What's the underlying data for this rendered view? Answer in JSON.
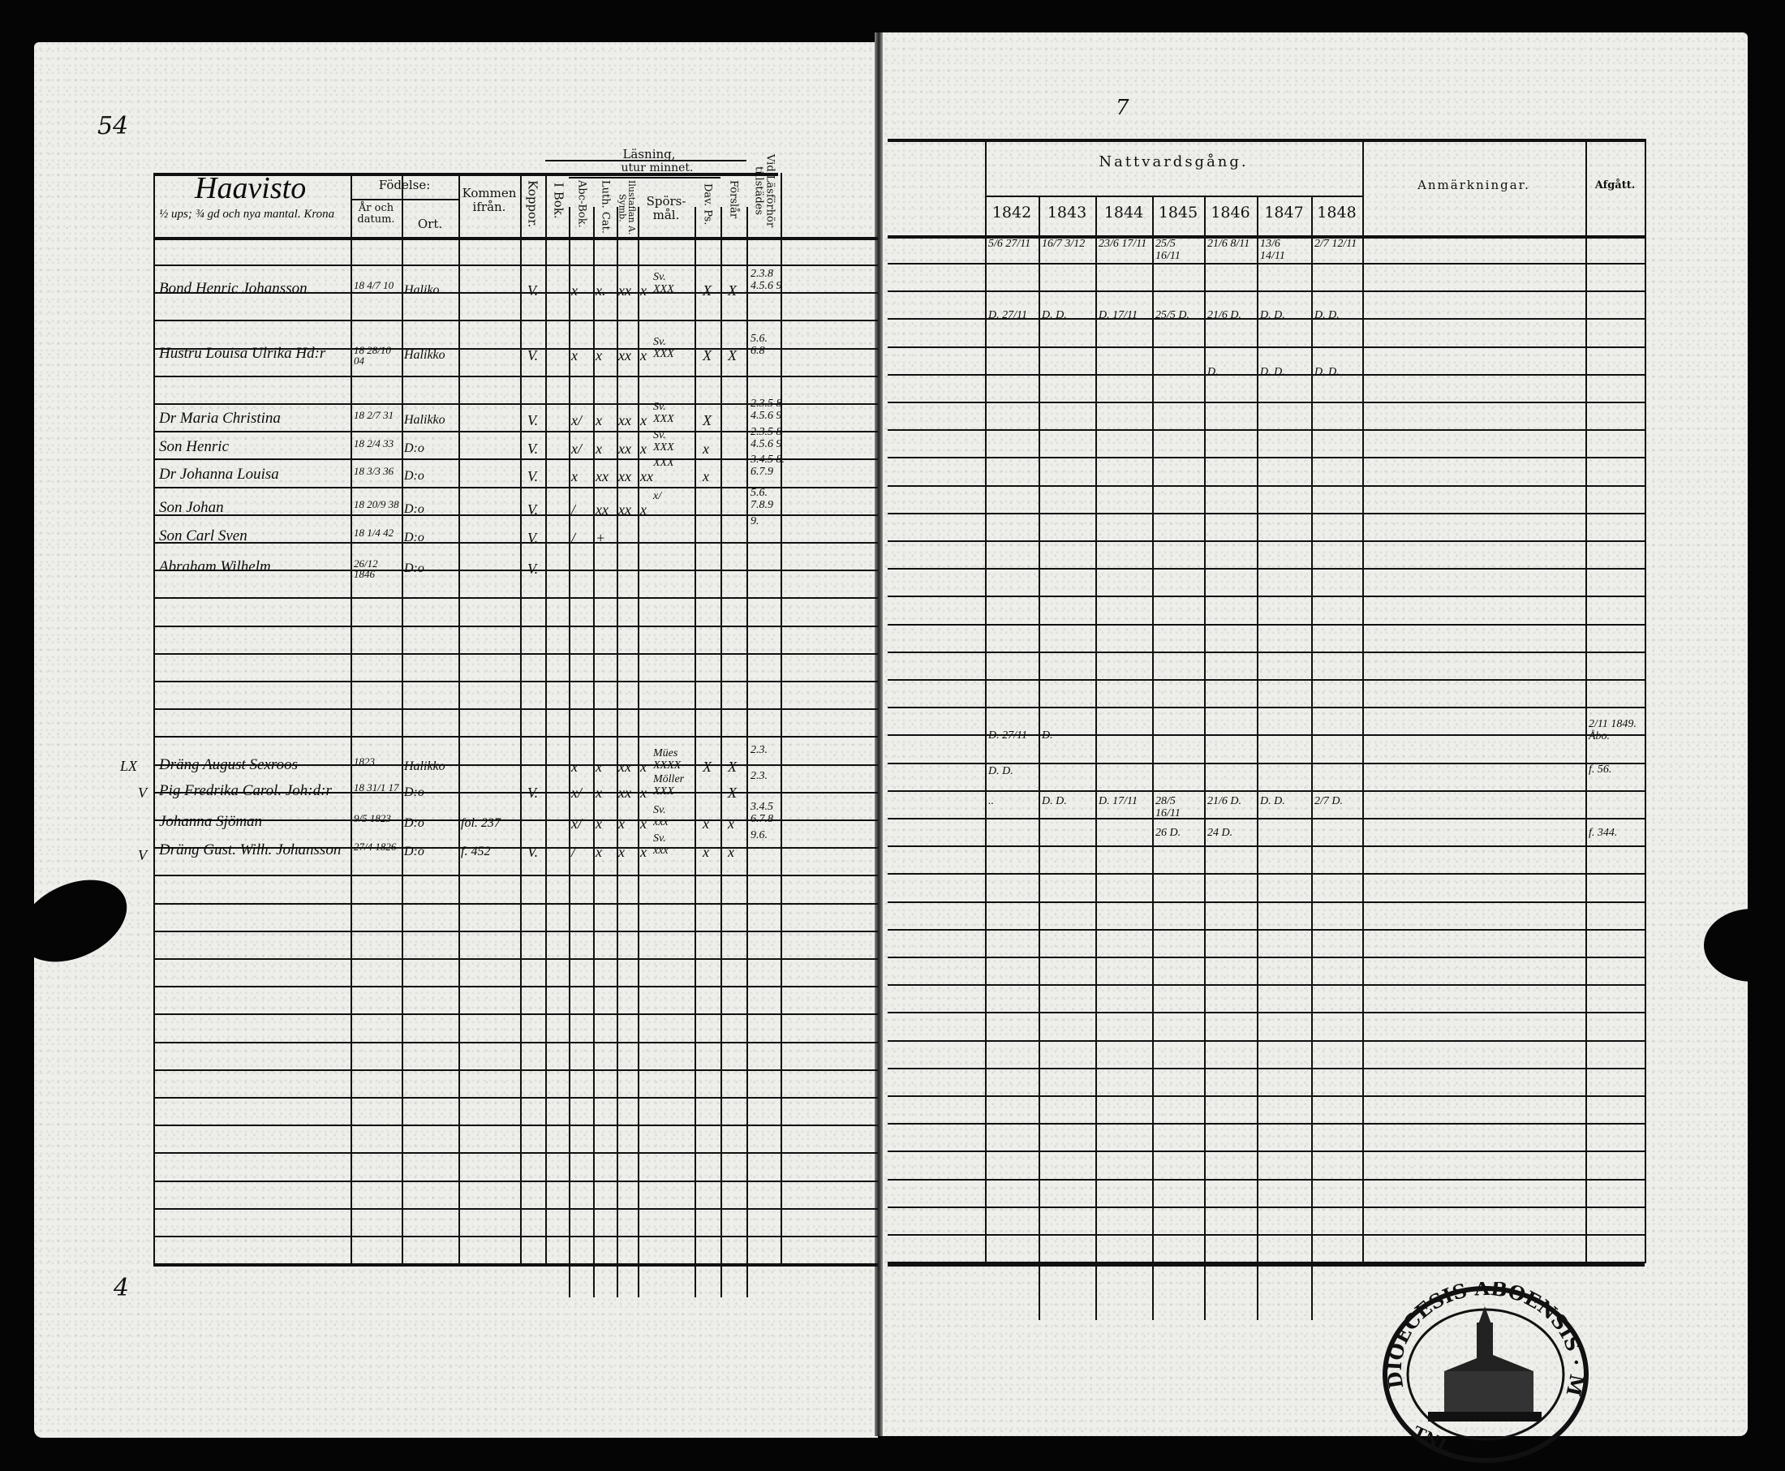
{
  "page_numbers": {
    "left_top": "54",
    "right_top": "7",
    "left_bottom": "4"
  },
  "left_header": {
    "village": "Haavisto",
    "village_note": "½ ups; ¾ gd och nya mantal.  Krona",
    "birth": "Födelse:",
    "birth_year": "År och datum.",
    "birth_place": "Ort.",
    "came_from": "Kommen ifrån.",
    "smallpox": "Koppor.",
    "reading": "Läsning,",
    "by_heart": "utur minnet.",
    "in_book": "I Bok.",
    "abc_book": "Abc-Bok.",
    "luth_cat": "Luth. Cat.",
    "illustration": "Ilustaflan A. Symb.",
    "questions": "Spörs-mål.",
    "dav_ps": "Dav. Ps.",
    "understanding": "Förslår",
    "exam_present": "Vid Läsförhör tillstädes"
  },
  "right_header": {
    "communion": "Nattvardsgång.",
    "years": [
      "1842",
      "1843",
      "1844",
      "1845",
      "1846",
      "1847",
      "1848"
    ],
    "remarks": "Anmärkningar.",
    "departed": "Afgått."
  },
  "persons": [
    {
      "name": "Bond Henric Johansson",
      "born": "18 4/7 10",
      "place": "Haliko",
      "came_from": "",
      "smallpox": "V.",
      "in_book": "x",
      "abc": "x.",
      "luth": "xx",
      "illust": "x",
      "questions": "Sv.\nXXX",
      "dav": "X",
      "understanding": "X",
      "exam": "2.3.8\n4.5.6 9",
      "communion": [
        "5/6 27/11",
        "16/7 3/12",
        "23/6 17/11",
        "25/5 16/11",
        "21/6 8/11",
        "13/6 14/11",
        "2/7 12/11"
      ],
      "departed": ""
    },
    {
      "name": "Hustru Louisa Ulrika Hd:r",
      "born": "18 28/10 04",
      "place": "Halikko",
      "came_from": "",
      "smallpox": "V.",
      "in_book": "x",
      "abc": "x",
      "luth": "xx",
      "illust": "x",
      "questions": "Sv.\nXXX",
      "dav": "X",
      "understanding": "X",
      "exam": "5.6.\n6.8",
      "communion": [
        "D. 27/11",
        "D. D.",
        "D. 17/11",
        "25/5 D.",
        "21/6 D.",
        "D. D.",
        "D. D."
      ],
      "departed": ""
    },
    {
      "name": "Dr Maria Christina",
      "born": "18 2/7 31",
      "place": "Halikko",
      "came_from": "",
      "smallpox": "V.",
      "in_book": "x/",
      "abc": "x",
      "luth": "xx",
      "illust": "x",
      "questions": "Sv.\nXXX",
      "dav": "X",
      "understanding": "",
      "exam": "2.3.5 8\n4.5.6 9",
      "communion": [
        "",
        "",
        "",
        "",
        "D.",
        "D. D.",
        "D. D."
      ],
      "departed": ""
    },
    {
      "name": "Son Henric",
      "born": "18 2/4 33",
      "place": "D:o",
      "came_from": "",
      "smallpox": "V.",
      "in_book": "x/",
      "abc": "x",
      "luth": "xx",
      "illust": "x",
      "questions": "Sv.\nXXX",
      "dav": "x",
      "understanding": "",
      "exam": "2.3.5 8\n4.5.6 9",
      "communion": [
        "",
        "",
        "",
        "",
        "",
        "",
        ""
      ],
      "departed": ""
    },
    {
      "name": "Dr Johanna Louisa",
      "born": "18 3/3 36",
      "place": "D:o",
      "came_from": "",
      "smallpox": "V.",
      "in_book": "x",
      "abc": "xx",
      "luth": "xx",
      "illust": "xx",
      "questions": "XXX",
      "dav": "x",
      "understanding": "",
      "exam": "3.4.5 8.\n6.7.9",
      "communion": [
        "",
        "",
        "",
        "",
        "",
        "",
        ""
      ],
      "departed": ""
    },
    {
      "name": "Son Johan",
      "born": "18 20/9 38",
      "place": "D:o",
      "came_from": "",
      "smallpox": "V.",
      "in_book": "/",
      "abc": "xx",
      "luth": "xx",
      "illust": "x",
      "questions": "x/",
      "dav": "",
      "understanding": "",
      "exam": "5.6.\n7.8.9",
      "communion": [
        "",
        "",
        "",
        "",
        "",
        "",
        ""
      ],
      "departed": ""
    },
    {
      "name": "Son Carl Sven",
      "born": "18 1/4 42",
      "place": "D:o",
      "came_from": "",
      "smallpox": "V.",
      "in_book": "/",
      "abc": "+",
      "luth": "",
      "illust": "",
      "questions": "",
      "dav": "",
      "understanding": "",
      "exam": "9.",
      "communion": [
        "",
        "",
        "",
        "",
        "",
        "",
        ""
      ],
      "departed": ""
    },
    {
      "name": "Abraham Wilhelm",
      "born": "26/12 1846",
      "place": "D:o",
      "came_from": "",
      "smallpox": "V.",
      "in_book": "",
      "abc": "",
      "luth": "",
      "illust": "",
      "questions": "",
      "dav": "",
      "understanding": "",
      "exam": "",
      "communion": [
        "",
        "",
        "",
        "",
        "",
        "",
        ""
      ],
      "departed": ""
    },
    {
      "name": "Dräng August Sexroos",
      "born": "1823",
      "place": "Halikko",
      "came_from": "",
      "smallpox": "",
      "in_book": "x",
      "abc": "x",
      "luth": "xx",
      "illust": "x",
      "questions": "Mües\nXXXX",
      "dav": "X",
      "understanding": "X",
      "exam": "2.3.",
      "communion": [
        "D. 27/11",
        "D.",
        "",
        "",
        "",
        "",
        ""
      ],
      "departed": "2/11 1849.\nÅbo."
    },
    {
      "name": "Pig Fredrika Carol. Joh:d:r",
      "born": "18 31/1 17",
      "place": "D:o",
      "came_from": "",
      "smallpox": "V.",
      "in_book": "x/",
      "abc": "x",
      "luth": "xx",
      "illust": "x",
      "questions": "Möller\nXXX",
      "dav": "",
      "understanding": "X",
      "exam": "2.3.",
      "communion": [
        "D. D.",
        "",
        "",
        "",
        "",
        "",
        ""
      ],
      "departed": "f. 56."
    },
    {
      "name": "Johanna Sjöman",
      "born": "9/5 1823",
      "place": "D:o",
      "came_from": "fol. 237",
      "smallpox": "",
      "in_book": "x/",
      "abc": "x",
      "luth": "x",
      "illust": "x",
      "questions": "Sv.\nxxx",
      "dav": "x",
      "understanding": "x",
      "exam": "3.4.5\n6.7.8",
      "communion": [
        "..",
        "D. D.",
        "D. 17/11",
        "28/5 16/11",
        "21/6 D.",
        "D. D.",
        "2/7 D."
      ],
      "departed": ""
    },
    {
      "name": "Dräng Gust. Wilh. Johansson",
      "born": "27/4 1826",
      "place": "D:o",
      "came_from": "f. 452",
      "smallpox": "V.",
      "in_book": "/",
      "abc": "x",
      "luth": "x",
      "illust": "x",
      "questions": "Sv.\nxxx",
      "dav": "x",
      "understanding": "x",
      "exam": "9.6.",
      "communion": [
        "",
        "",
        "",
        "26 D.",
        "24 D.",
        "",
        ""
      ],
      "departed": "f. 344."
    }
  ],
  "margin_marks": [
    "LX",
    "V",
    "V"
  ],
  "stamp": {
    "text_top": "DIOECESIS ABOENSIS",
    "text_side": "MAGN",
    "text_bottom": "TNL"
  }
}
